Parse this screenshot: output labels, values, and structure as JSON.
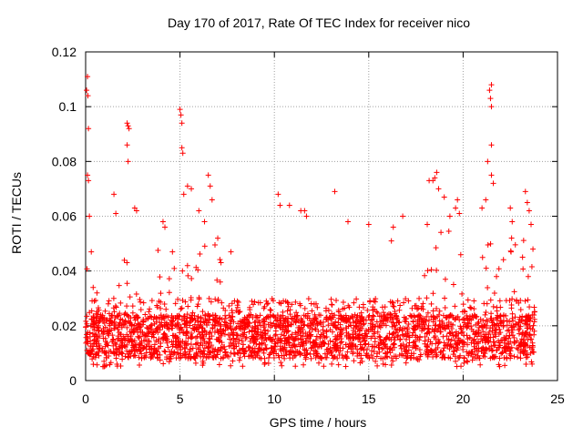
{
  "chart_data": {
    "type": "scatter",
    "title": "Day 170 of 2017, Rate Of TEC Index for receiver nico",
    "xlabel": "GPS time / hours",
    "ylabel": "ROTI / TECUs",
    "xlim": [
      0,
      25
    ],
    "ylim": [
      0,
      0.12
    ],
    "xticks": [
      "0",
      "5",
      "10",
      "15",
      "20",
      "25"
    ],
    "yticks": [
      "0",
      "0.02",
      "0.04",
      "0.06",
      "0.08",
      "0.1",
      "0.12"
    ],
    "grid": true,
    "marker": "+",
    "color": "#ff0000",
    "x_range": [
      0,
      23.8
    ],
    "series": [
      {
        "points": [
          [
            0.05,
            0.106
          ],
          [
            0.1,
            0.111
          ],
          [
            0.12,
            0.104
          ],
          [
            0.15,
            0.092
          ],
          [
            0.1,
            0.075
          ],
          [
            0.15,
            0.073
          ],
          [
            0.2,
            0.06
          ],
          [
            0.3,
            0.047
          ],
          [
            0.4,
            0.034
          ],
          [
            0.6,
            0.032
          ],
          [
            1.2,
            0.028
          ],
          [
            1.5,
            0.068
          ],
          [
            1.6,
            0.061
          ],
          [
            2.2,
            0.094
          ],
          [
            2.25,
            0.093
          ],
          [
            2.3,
            0.092
          ],
          [
            2.2,
            0.086
          ],
          [
            2.25,
            0.08
          ],
          [
            2.6,
            0.063
          ],
          [
            2.7,
            0.062
          ],
          [
            4.1,
            0.058
          ],
          [
            4.2,
            0.056
          ],
          [
            4.6,
            0.047
          ],
          [
            5.0,
            0.099
          ],
          [
            5.05,
            0.097
          ],
          [
            5.1,
            0.094
          ],
          [
            5.1,
            0.085
          ],
          [
            5.15,
            0.083
          ],
          [
            5.2,
            0.068
          ],
          [
            5.4,
            0.071
          ],
          [
            5.6,
            0.07
          ],
          [
            6.0,
            0.062
          ],
          [
            6.3,
            0.058
          ],
          [
            6.5,
            0.075
          ],
          [
            6.6,
            0.071
          ],
          [
            6.7,
            0.066
          ],
          [
            7.0,
            0.052
          ],
          [
            7.7,
            0.047
          ],
          [
            10.2,
            0.068
          ],
          [
            10.3,
            0.064
          ],
          [
            10.8,
            0.064
          ],
          [
            11.4,
            0.062
          ],
          [
            11.6,
            0.062
          ],
          [
            11.7,
            0.06
          ],
          [
            13.2,
            0.069
          ],
          [
            13.9,
            0.058
          ],
          [
            15.0,
            0.057
          ],
          [
            16.2,
            0.051
          ],
          [
            16.3,
            0.056
          ],
          [
            16.8,
            0.06
          ],
          [
            18.1,
            0.057
          ],
          [
            18.2,
            0.073
          ],
          [
            18.4,
            0.073
          ],
          [
            18.5,
            0.074
          ],
          [
            18.6,
            0.076
          ],
          [
            18.7,
            0.07
          ],
          [
            19.0,
            0.067
          ],
          [
            19.3,
            0.06
          ],
          [
            19.6,
            0.063
          ],
          [
            19.7,
            0.066
          ],
          [
            19.8,
            0.061
          ],
          [
            21.0,
            0.063
          ],
          [
            21.2,
            0.066
          ],
          [
            21.4,
            0.106
          ],
          [
            21.5,
            0.108
          ],
          [
            21.45,
            0.103
          ],
          [
            21.5,
            0.1
          ],
          [
            21.5,
            0.086
          ],
          [
            21.3,
            0.08
          ],
          [
            21.5,
            0.075
          ],
          [
            21.6,
            0.072
          ],
          [
            22.5,
            0.063
          ],
          [
            22.6,
            0.058
          ],
          [
            23.3,
            0.069
          ],
          [
            23.4,
            0.065
          ],
          [
            23.5,
            0.062
          ],
          [
            23.6,
            0.057
          ],
          [
            23.7,
            0.048
          ]
        ]
      }
    ]
  }
}
